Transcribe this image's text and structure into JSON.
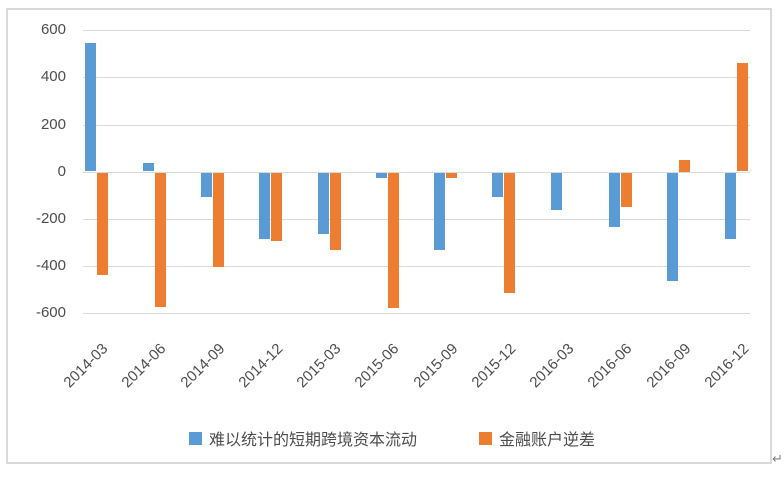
{
  "chart_data": {
    "type": "bar",
    "title": "",
    "xlabel": "",
    "ylabel": "",
    "categories": [
      "2014-03",
      "2014-06",
      "2014-09",
      "2014-12",
      "2015-03",
      "2015-06",
      "2015-09",
      "2015-12",
      "2016-03",
      "2016-06",
      "2016-09",
      "2016-12"
    ],
    "series": [
      {
        "name": "难以统计的短期跨境资本流动",
        "color": "#5B9BD5",
        "values": [
          545,
          35,
          -100,
          -280,
          -260,
          -20,
          -325,
          -100,
          -155,
          -230,
          -460,
          -280
        ]
      },
      {
        "name": "金融账户逆差",
        "color": "#ED7D31",
        "values": [
          -435,
          -570,
          -400,
          -290,
          -325,
          -575,
          -20,
          -510,
          0,
          -145,
          50,
          460
        ]
      }
    ],
    "y_ticks": [
      600,
      400,
      200,
      0,
      -200,
      -400,
      -600
    ],
    "ylim": [
      -600,
      600
    ],
    "grid": true,
    "legend_position": "bottom"
  },
  "decorations": {
    "return_mark": "↵"
  },
  "colors": {
    "grid": "#D9D9D9",
    "frame_border": "#D9D9D9",
    "axis_text": "#4d4d4d",
    "background": "#FFFFFF"
  }
}
